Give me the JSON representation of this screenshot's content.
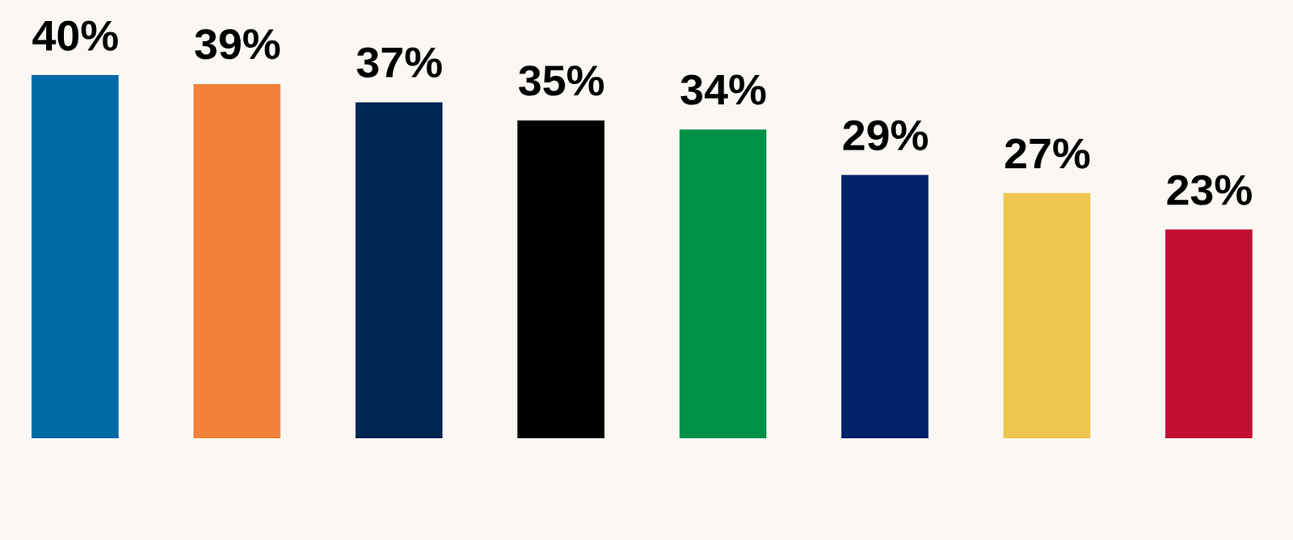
{
  "chart_data": {
    "type": "bar",
    "categories": [
      null,
      null,
      null,
      null,
      null,
      null,
      null,
      null
    ],
    "values": [
      40,
      39,
      37,
      35,
      34,
      29,
      27,
      23
    ],
    "value_labels": [
      "40%",
      "39%",
      "37%",
      "35%",
      "34%",
      "29%",
      "27%",
      "23%"
    ],
    "colors": [
      "#006aa7",
      "#f4813a",
      "#002654",
      "#000000",
      "#009246",
      "#012169",
      "#edc651",
      "#c10f33"
    ],
    "ylim": [
      0,
      40
    ],
    "data_labels": true,
    "tick_labels": false
  }
}
